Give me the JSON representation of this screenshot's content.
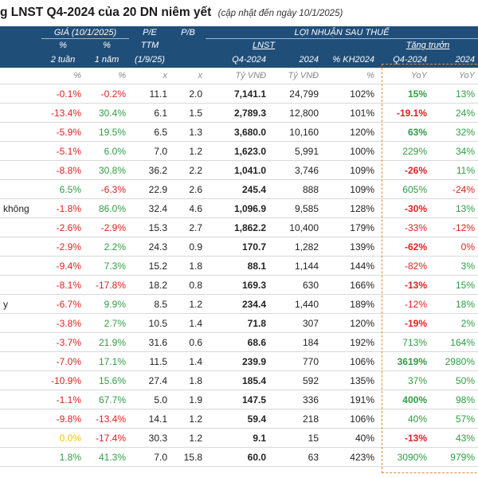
{
  "title": {
    "main": "g LNST Q4-2024 của 20 DN niêm yết",
    "sub": "(cập nhật đến ngày 10/1/2025)"
  },
  "header": {
    "price_group": "GIÁ (10/1/2025)",
    "pe": "P/E",
    "pb": "P/B",
    "profit_group": "LỢI NHUẬN SAU THUẾ",
    "pct": "%",
    "two_weeks": "2 tuần",
    "one_year": "1 năm",
    "ttm": "TTM",
    "ttm_date": "(1/9/25)",
    "lnst": "LNST",
    "growth": "Tăng trưởn",
    "q4": "Q4-2024",
    "y2024": "2024",
    "kh": "% KH2024",
    "q4g": "Q4-2024",
    "y2024g": "2024"
  },
  "units": [
    "%",
    "%",
    "x",
    "x",
    "Tỷ VNĐ",
    "Tỷ VNĐ",
    "%",
    "YoY",
    "YoY"
  ],
  "rows": [
    {
      "name": "",
      "w2": "-0.1%",
      "y1": "-0.2%",
      "pe": "11.1",
      "pb": "2.0",
      "q4": "7,141.1",
      "y24": "24,799",
      "kh": "102%",
      "gq": "15%",
      "gy": "13%"
    },
    {
      "name": "",
      "w2": "-13.4%",
      "y1": "30.4%",
      "pe": "6.1",
      "pb": "1.5",
      "q4": "2,789.3",
      "y24": "12,800",
      "kh": "101%",
      "gq": "-19.1%",
      "gy": "24%"
    },
    {
      "name": "",
      "w2": "-5.9%",
      "y1": "19.5%",
      "pe": "6.5",
      "pb": "1.3",
      "q4": "3,680.0",
      "y24": "10,160",
      "kh": "120%",
      "gq": "63%",
      "gy": "32%"
    },
    {
      "name": "",
      "w2": "-5.1%",
      "y1": "6.0%",
      "pe": "7.0",
      "pb": "1.2",
      "q4": "1,623.0",
      "y24": "5,991",
      "kh": "100%",
      "gq": "229%",
      "gy": "34%"
    },
    {
      "name": "",
      "w2": "-8.8%",
      "y1": "30.8%",
      "pe": "36.2",
      "pb": "2.2",
      "q4": "1,041.0",
      "y24": "3,746",
      "kh": "109%",
      "gq": "-26%",
      "gy": "11%"
    },
    {
      "name": "",
      "w2": "6.5%",
      "y1": "-6.3%",
      "pe": "22.9",
      "pb": "2.6",
      "q4": "245.4",
      "y24": "888",
      "kh": "109%",
      "gq": "605%",
      "gy": "-24%"
    },
    {
      "name": "không",
      "w2": "-1.8%",
      "y1": "86.0%",
      "pe": "32.4",
      "pb": "4.6",
      "q4": "1,096.9",
      "y24": "9,585",
      "kh": "128%",
      "gq": "-30%",
      "gy": "13%"
    },
    {
      "name": "",
      "w2": "-2.6%",
      "y1": "-2.9%",
      "pe": "15.3",
      "pb": "2.7",
      "q4": "1,862.2",
      "y24": "10,400",
      "kh": "179%",
      "gq": "-33%",
      "gy": "-12%"
    },
    {
      "name": "",
      "w2": "-2.9%",
      "y1": "2.2%",
      "pe": "24.3",
      "pb": "0.9",
      "q4": "170.7",
      "y24": "1,282",
      "kh": "139%",
      "gq": "-62%",
      "gy": "0%"
    },
    {
      "name": "",
      "w2": "-9.4%",
      "y1": "7.3%",
      "pe": "15.2",
      "pb": "1.8",
      "q4": "88.1",
      "y24": "1,144",
      "kh": "144%",
      "gq": "-82%",
      "gy": "3%"
    },
    {
      "name": "",
      "w2": "-8.1%",
      "y1": "-17.8%",
      "pe": "18.2",
      "pb": "0.8",
      "q4": "169.3",
      "y24": "630",
      "kh": "166%",
      "gq": "-13%",
      "gy": "15%"
    },
    {
      "name": "y",
      "w2": "-6.7%",
      "y1": "9.9%",
      "pe": "8.5",
      "pb": "1.2",
      "q4": "234.4",
      "y24": "1,440",
      "kh": "189%",
      "gq": "-12%",
      "gy": "18%"
    },
    {
      "name": "",
      "w2": "-3.8%",
      "y1": "2.7%",
      "pe": "10.5",
      "pb": "1.4",
      "q4": "71.8",
      "y24": "307",
      "kh": "120%",
      "gq": "-19%",
      "gy": "2%"
    },
    {
      "name": "",
      "w2": "-3.7%",
      "y1": "21.9%",
      "pe": "31.6",
      "pb": "0.6",
      "q4": "68.6",
      "y24": "184",
      "kh": "192%",
      "gq": "713%",
      "gy": "164%"
    },
    {
      "name": "",
      "w2": "-7.0%",
      "y1": "17.1%",
      "pe": "11.5",
      "pb": "1.4",
      "q4": "239.9",
      "y24": "770",
      "kh": "106%",
      "gq": "3619%",
      "gy": "2980%"
    },
    {
      "name": "",
      "w2": "-10.9%",
      "y1": "15.6%",
      "pe": "27.4",
      "pb": "1.8",
      "q4": "185.4",
      "y24": "592",
      "kh": "135%",
      "gq": "37%",
      "gy": "50%"
    },
    {
      "name": "",
      "w2": "-1.1%",
      "y1": "67.7%",
      "pe": "5.0",
      "pb": "1.9",
      "q4": "147.5",
      "y24": "336",
      "kh": "191%",
      "gq": "400%",
      "gy": "98%"
    },
    {
      "name": "",
      "w2": "-9.8%",
      "y1": "-13.4%",
      "pe": "14.1",
      "pb": "1.2",
      "q4": "59.4",
      "y24": "218",
      "kh": "106%",
      "gq": "40%",
      "gy": "57%"
    },
    {
      "name": "",
      "w2": "0.0%",
      "y1": "-17.4%",
      "pe": "30.3",
      "pb": "1.2",
      "q4": "9.1",
      "y24": "15",
      "kh": "40%",
      "gq": "-13%",
      "gy": "43%"
    },
    {
      "name": "",
      "w2": "1.8%",
      "y1": "41.3%",
      "pe": "7.0",
      "pb": "15.8",
      "q4": "60.0",
      "y24": "63",
      "kh": "423%",
      "gq": "3090%",
      "gy": "979%"
    }
  ],
  "colors": {
    "header_bg": "#1f4e79",
    "negative": "#e0211f",
    "positive": "#2e9e44",
    "neutral": "#f5c400",
    "dash_box": "#e2883a"
  }
}
